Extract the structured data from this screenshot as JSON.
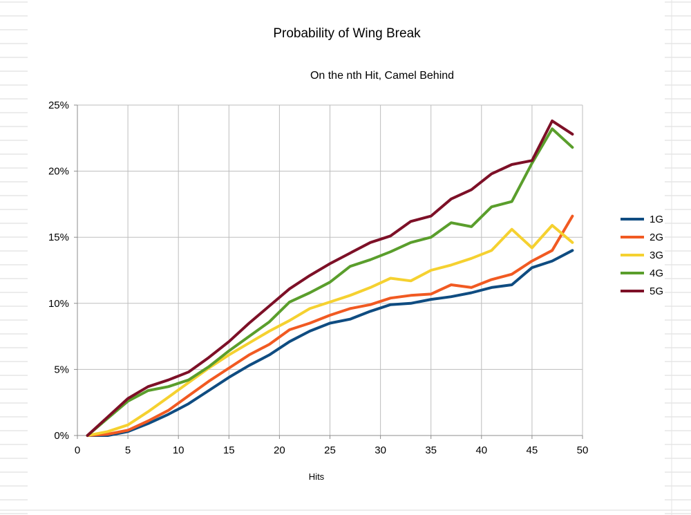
{
  "chart_data": {
    "type": "line",
    "title": "Probability of Wing Break",
    "subtitle": "On the nth Hit, Camel Behind",
    "xlabel": "Hits",
    "ylabel": "",
    "xlim": [
      0,
      50
    ],
    "ylim": [
      0,
      0.25
    ],
    "xticks": [
      0,
      5,
      10,
      15,
      20,
      25,
      30,
      35,
      40,
      45,
      50
    ],
    "xtick_labels": [
      "0",
      "5",
      "10",
      "15",
      "20",
      "25",
      "30",
      "35",
      "40",
      "45",
      "50"
    ],
    "yticks": [
      0,
      0.05,
      0.1,
      0.15,
      0.2,
      0.25
    ],
    "ytick_labels": [
      "0%",
      "5%",
      "10%",
      "15%",
      "20%",
      "25%"
    ],
    "grid": true,
    "legend_position": "right",
    "x": [
      1,
      3,
      5,
      7,
      9,
      11,
      13,
      15,
      17,
      19,
      21,
      23,
      25,
      27,
      29,
      31,
      33,
      35,
      37,
      39,
      41,
      43,
      45,
      47,
      49
    ],
    "series": [
      {
        "name": "1G",
        "color": "#0f4c81",
        "values": [
          0.0,
          0.0,
          0.003,
          0.009,
          0.016,
          0.024,
          0.034,
          0.044,
          0.053,
          0.061,
          0.071,
          0.079,
          0.085,
          0.088,
          0.094,
          0.099,
          0.1,
          0.103,
          0.105,
          0.108,
          0.112,
          0.114,
          0.127,
          0.132,
          0.14
        ]
      },
      {
        "name": "2G",
        "color": "#f15a22",
        "values": [
          0.0,
          0.001,
          0.004,
          0.011,
          0.019,
          0.03,
          0.041,
          0.051,
          0.061,
          0.069,
          0.08,
          0.085,
          0.091,
          0.096,
          0.099,
          0.104,
          0.106,
          0.107,
          0.114,
          0.112,
          0.118,
          0.122,
          0.132,
          0.14,
          0.166
        ]
      },
      {
        "name": "3G",
        "color": "#f5d130",
        "values": [
          0.0,
          0.003,
          0.008,
          0.018,
          0.029,
          0.04,
          0.051,
          0.061,
          0.07,
          0.079,
          0.087,
          0.096,
          0.101,
          0.106,
          0.112,
          0.119,
          0.117,
          0.125,
          0.129,
          0.134,
          0.14,
          0.156,
          0.142,
          0.159,
          0.146
        ]
      },
      {
        "name": "4G",
        "color": "#5a9e2c",
        "values": [
          0.0,
          0.013,
          0.026,
          0.034,
          0.037,
          0.042,
          0.052,
          0.064,
          0.075,
          0.086,
          0.101,
          0.108,
          0.116,
          0.128,
          0.133,
          0.139,
          0.146,
          0.15,
          0.161,
          0.158,
          0.173,
          0.177,
          0.206,
          0.232,
          0.218
        ]
      },
      {
        "name": "5G",
        "color": "#7d1027",
        "values": [
          0.0,
          0.014,
          0.028,
          0.037,
          0.042,
          0.048,
          0.059,
          0.071,
          0.085,
          0.098,
          0.111,
          0.121,
          0.13,
          0.138,
          0.146,
          0.151,
          0.162,
          0.166,
          0.179,
          0.186,
          0.198,
          0.205,
          0.208,
          0.238,
          0.228
        ]
      }
    ]
  }
}
